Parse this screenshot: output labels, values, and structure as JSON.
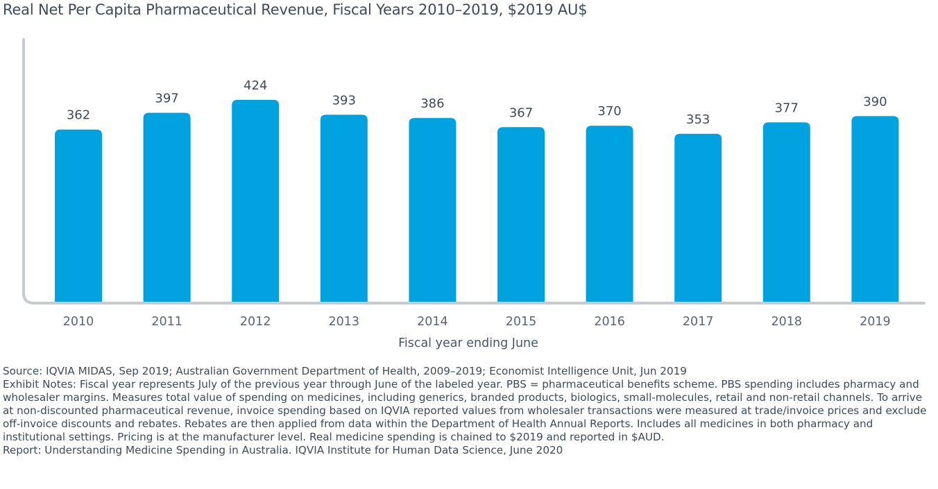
{
  "chart_data": {
    "type": "bar",
    "title": "Real Net Per Capita Pharmaceutical Revenue, Fiscal Years 2010–2019, $2019 AU$",
    "xlabel": "Fiscal year ending June",
    "ylabel": "",
    "categories": [
      "2010",
      "2011",
      "2012",
      "2013",
      "2014",
      "2015",
      "2016",
      "2017",
      "2018",
      "2019"
    ],
    "values": [
      362,
      397,
      424,
      393,
      386,
      367,
      370,
      353,
      377,
      390
    ],
    "ylim": [
      0,
      424
    ],
    "grid": false,
    "legend": "none",
    "bar_color": "#00a3e0",
    "axis_color": "#c7cbd1"
  },
  "notes": {
    "source": "Source: IQVIA MIDAS, Sep 2019; Australian Government Department of Health, 2009–2019; Economist Intelligence Unit, Jun 2019",
    "exhibit_notes": "Exhibit Notes: Fiscal year represents July of the previous year through June of the labeled year. PBS = pharmaceutical benefits scheme. PBS spending includes pharmacy and wholesaler margins. Measures total value of spending on medicines, including generics, branded products, biologics, small-molecules, retail and non-retail channels. To arrive at non-discounted pharmaceutical revenue, invoice spending based on IQVIA reported values from wholesaler transactions were measured at trade/invoice prices and exclude off-invoice discounts and rebates. Rebates are then applied from data within the Department of Health Annual Reports. Includes all medicines in both pharmacy and institutional settings. Pricing is at the manufacturer level. Real medicine spending is chained to $2019 and reported in $AUD.",
    "report": "Report: Understanding Medicine Spending in Australia. IQVIA Institute for Human Data Science, June 2020"
  }
}
